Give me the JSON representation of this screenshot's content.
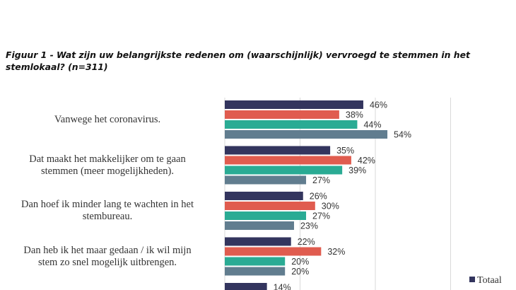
{
  "title": "Figuur 1 - Wat zijn uw belangrijkste redenen om (waarschijnlijk) vervroegd te stemmen in het stemlokaal? (n=311)",
  "colors": {
    "series": [
      "#33355e",
      "#e05c4f",
      "#2aab94",
      "#617d8f"
    ],
    "grid": "#d9d9d9",
    "label": "#333333"
  },
  "chart_data": {
    "type": "bar",
    "orientation": "horizontal",
    "title": "Figuur 1 - Wat zijn uw belangrijkste redenen om (waarschijnlijk) vervroegd te stemmen in het stemlokaal? (n=311)",
    "categories": [
      "Vanwege het coronavirus.",
      "Dat maakt het makkelijker om te gaan stemmen (meer mogelijkheden).",
      "Dan hoef ik minder lang te wachten in het stembureau.",
      "Dan heb ik het maar gedaan / ik wil mijn stem zo snel mogelijk uitbrengen.",
      ""
    ],
    "category_lines": [
      [
        "Vanwege het coronavirus."
      ],
      [
        "Dat maakt het makkelijker om te gaan",
        "stemmen (meer mogelijkheden)."
      ],
      [
        "Dan hoef ik minder lang te wachten in het",
        "stembureau."
      ],
      [
        "Dan heb ik het maar gedaan / ik wil mijn",
        "stem zo snel mogelijk uitbrengen."
      ],
      []
    ],
    "series": [
      {
        "name": "Totaal",
        "values": [
          46,
          35,
          26,
          22,
          14
        ]
      },
      {
        "values": [
          38,
          42,
          30,
          32,
          null
        ]
      },
      {
        "values": [
          44,
          39,
          27,
          20,
          null
        ]
      },
      {
        "values": [
          54,
          27,
          23,
          20,
          null
        ]
      }
    ],
    "value_suffix": "%",
    "xlim": [
      0,
      100
    ],
    "grid": true,
    "legend_position": "bottom-right",
    "legend": [
      "Totaal"
    ]
  }
}
